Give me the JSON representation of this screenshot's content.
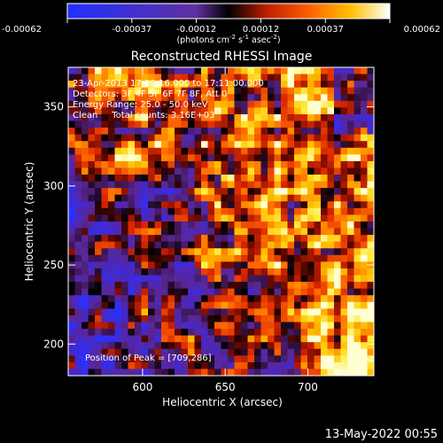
{
  "chart_data": {
    "type": "heatmap",
    "title": "Reconstructed RHESSI Image",
    "xlabel": "Heliocentric X (arcsec)",
    "ylabel": "Heliocentric Y (arcsec)",
    "xlim": [
      555,
      740
    ],
    "ylim": [
      180,
      375
    ],
    "x_ticks": [
      600,
      650,
      700
    ],
    "y_ticks": [
      200,
      250,
      300,
      350
    ],
    "colorbar": {
      "ticks": [
        "-0.00062",
        "-0.00037",
        "-0.00012",
        "0.00012",
        "0.00037",
        "0.00062"
      ],
      "range": [
        -0.00062,
        0.00062
      ],
      "unit_label": "(photons cm",
      "unit_sup1": "-2",
      "unit_mid": " s",
      "unit_sup2": "-1",
      "unit_mid2": " asec",
      "unit_sup3": "-2",
      "unit_end": ")"
    },
    "annotations": [
      "23-Apr-2013 17:09:16.000 to 17:11:00.000",
      "Detectors: 3F 4F 5F 6F 7F 8F, Att 0",
      "Energy Range: 25.0 - 50.0 keV",
      "Clean     Total counts: 3.16E+03"
    ],
    "peak_label": "Position of Peak = [709,286]",
    "grid": false
  },
  "footer": {
    "date": "13-May-2022 00:55"
  },
  "colors": {
    "background": "#000000",
    "foreground": "#ffffff"
  }
}
